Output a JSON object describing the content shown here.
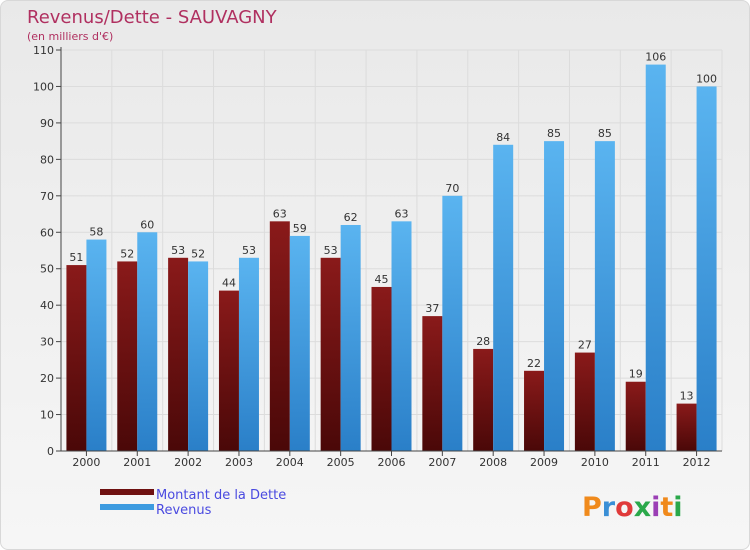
{
  "chart_data": {
    "type": "bar",
    "title": "Revenus/Dette - SAUVAGNY",
    "subtitle": "(en milliers d'€)",
    "categories": [
      "2000",
      "2001",
      "2002",
      "2003",
      "2004",
      "2005",
      "2006",
      "2007",
      "2008",
      "2009",
      "2010",
      "2011",
      "2012"
    ],
    "series": [
      {
        "name": "Montant de la Dette",
        "color": "#6e1010",
        "values": [
          51,
          52,
          53,
          44,
          63,
          53,
          45,
          37,
          28,
          22,
          27,
          19,
          13
        ]
      },
      {
        "name": "Revenus",
        "color": "#3d9be0",
        "values": [
          58,
          60,
          52,
          53,
          59,
          62,
          63,
          70,
          84,
          85,
          85,
          106,
          100
        ]
      }
    ],
    "ylim": [
      0,
      110
    ],
    "yticks": [
      0,
      10,
      20,
      30,
      40,
      50,
      60,
      70,
      80,
      90,
      100,
      110
    ],
    "grid": true,
    "legend_position": "bottom-left"
  },
  "logo": {
    "text": "Proxiti",
    "colors": [
      "#f08a1c",
      "#3a8fd6",
      "#e03a3a",
      "#2aa84a",
      "#9b3fb5",
      "#f08a1c",
      "#2aa84a"
    ]
  }
}
